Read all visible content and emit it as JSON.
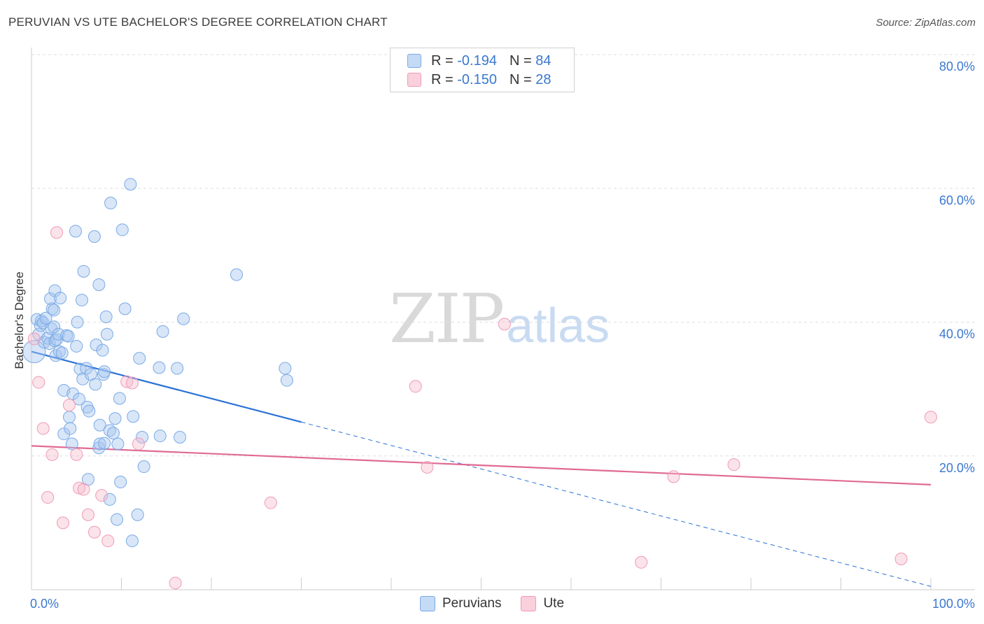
{
  "title": "PERUVIAN VS UTE BACHELOR'S DEGREE CORRELATION CHART",
  "source": "Source: ZipAtlas.com",
  "watermark": {
    "zip": "ZIP",
    "atlas": "atlas"
  },
  "legend": {
    "rows": [
      {
        "r_label": "R =",
        "r_value": "-0.194",
        "n_label": "N =",
        "n_value": "84",
        "color": "#a8c8f0"
      },
      {
        "r_label": "R =",
        "r_value": "-0.150",
        "n_label": "N =",
        "n_value": "28",
        "color": "#f5b8ca"
      }
    ]
  },
  "bottom_legend": [
    {
      "label": "Peruvians",
      "color": "#a8c8f0"
    },
    {
      "label": "Ute",
      "color": "#f5b8ca"
    }
  ],
  "chart_data": {
    "type": "scatter",
    "title": "PERUVIAN VS UTE BACHELOR'S DEGREE CORRELATION CHART",
    "xlabel": "",
    "ylabel": "Bachelor's Degree",
    "xlim": [
      0,
      100
    ],
    "ylim": [
      0,
      80
    ],
    "x_tick_labels": [
      "0.0%",
      "100.0%"
    ],
    "y_ticks": [
      20,
      40,
      60,
      80
    ],
    "y_tick_labels": [
      "20.0%",
      "40.0%",
      "60.0%",
      "80.0%"
    ],
    "grid": true,
    "series": [
      {
        "name": "Peruvians",
        "color": "#7aaae6",
        "trend_color": "#2a72d6",
        "trend": {
          "x0": 0,
          "y0": 35.6,
          "x1_solid": 30,
          "x1": 100,
          "y1": 0.5
        },
        "points": [
          [
            0.3,
            35.6
          ],
          [
            0.6,
            40.4
          ],
          [
            0.8,
            38.2
          ],
          [
            1.0,
            39.5
          ],
          [
            1.1,
            40.2
          ],
          [
            1.3,
            39.9
          ],
          [
            1.4,
            37.0
          ],
          [
            1.6,
            40.6
          ],
          [
            1.8,
            37.6
          ],
          [
            2.0,
            36.8
          ],
          [
            2.1,
            43.5
          ],
          [
            2.2,
            39.0
          ],
          [
            2.3,
            42.0
          ],
          [
            2.5,
            41.8
          ],
          [
            2.5,
            39.3
          ],
          [
            2.6,
            37.2
          ],
          [
            2.6,
            44.7
          ],
          [
            2.7,
            35.0
          ],
          [
            2.8,
            37.4
          ],
          [
            3.0,
            38.2
          ],
          [
            3.1,
            35.6
          ],
          [
            3.2,
            43.6
          ],
          [
            3.4,
            35.4
          ],
          [
            3.6,
            29.8
          ],
          [
            3.6,
            23.3
          ],
          [
            3.9,
            38.0
          ],
          [
            4.1,
            37.9
          ],
          [
            4.2,
            25.8
          ],
          [
            4.3,
            24.1
          ],
          [
            4.5,
            21.8
          ],
          [
            4.6,
            29.3
          ],
          [
            4.9,
            53.6
          ],
          [
            5.0,
            36.4
          ],
          [
            5.1,
            40.0
          ],
          [
            5.3,
            28.5
          ],
          [
            5.4,
            33.0
          ],
          [
            5.6,
            43.3
          ],
          [
            5.7,
            31.5
          ],
          [
            5.8,
            47.6
          ],
          [
            6.1,
            33.1
          ],
          [
            6.2,
            27.3
          ],
          [
            6.3,
            16.5
          ],
          [
            6.4,
            26.7
          ],
          [
            6.6,
            32.2
          ],
          [
            7.0,
            52.8
          ],
          [
            7.1,
            30.7
          ],
          [
            7.2,
            36.6
          ],
          [
            7.5,
            21.2
          ],
          [
            7.6,
            21.8
          ],
          [
            7.5,
            45.6
          ],
          [
            7.6,
            24.6
          ],
          [
            7.9,
            35.8
          ],
          [
            8.0,
            32.2
          ],
          [
            8.1,
            21.9
          ],
          [
            8.1,
            32.6
          ],
          [
            8.3,
            40.8
          ],
          [
            8.4,
            38.2
          ],
          [
            8.7,
            23.8
          ],
          [
            8.7,
            13.5
          ],
          [
            8.8,
            57.8
          ],
          [
            9.1,
            23.4
          ],
          [
            9.3,
            25.6
          ],
          [
            9.5,
            10.5
          ],
          [
            9.6,
            21.8
          ],
          [
            9.8,
            28.6
          ],
          [
            9.9,
            16.1
          ],
          [
            10.1,
            53.8
          ],
          [
            10.4,
            42.0
          ],
          [
            11.0,
            60.6
          ],
          [
            11.3,
            25.9
          ],
          [
            11.2,
            7.3
          ],
          [
            11.8,
            11.2
          ],
          [
            12.0,
            34.6
          ],
          [
            12.3,
            22.8
          ],
          [
            12.5,
            18.4
          ],
          [
            14.2,
            33.2
          ],
          [
            14.3,
            23.0
          ],
          [
            14.6,
            38.6
          ],
          [
            16.2,
            33.1
          ],
          [
            16.5,
            22.8
          ],
          [
            16.9,
            40.5
          ],
          [
            22.8,
            47.1
          ],
          [
            28.2,
            33.1
          ],
          [
            28.4,
            31.3
          ]
        ]
      },
      {
        "name": "Ute",
        "color": "#f09ab6",
        "trend_color": "#e06a93",
        "trend": {
          "x0": 0,
          "y0": 21.5,
          "x1": 100,
          "y1": 15.7
        },
        "points": [
          [
            0.3,
            37.5
          ],
          [
            0.8,
            31.0
          ],
          [
            1.3,
            24.1
          ],
          [
            1.8,
            13.8
          ],
          [
            2.3,
            20.2
          ],
          [
            2.8,
            53.4
          ],
          [
            3.5,
            10.0
          ],
          [
            4.2,
            27.6
          ],
          [
            5.0,
            20.2
          ],
          [
            5.3,
            15.2
          ],
          [
            5.8,
            15.0
          ],
          [
            6.3,
            11.2
          ],
          [
            7.0,
            8.6
          ],
          [
            7.8,
            14.1
          ],
          [
            8.5,
            7.3
          ],
          [
            10.6,
            31.1
          ],
          [
            11.2,
            30.9
          ],
          [
            11.9,
            21.8
          ],
          [
            16.0,
            1.0
          ],
          [
            26.6,
            13.0
          ],
          [
            42.7,
            30.4
          ],
          [
            44.0,
            18.3
          ],
          [
            52.6,
            39.7
          ],
          [
            67.8,
            4.1
          ],
          [
            71.4,
            16.9
          ],
          [
            78.1,
            18.7
          ],
          [
            96.7,
            4.6
          ],
          [
            100.0,
            25.8
          ]
        ]
      }
    ]
  }
}
